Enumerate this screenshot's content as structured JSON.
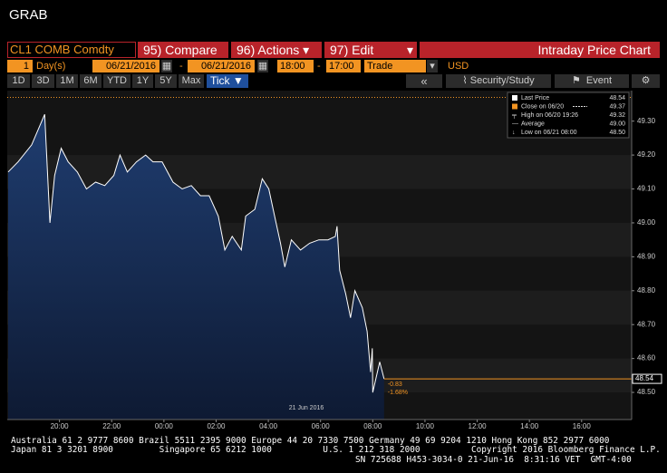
{
  "header": {
    "title": "GRAB"
  },
  "toolbar": {
    "security": "CL1 COMB Comdty",
    "buttons": [
      "95) Compare",
      "96) Actions",
      "97) Edit"
    ],
    "panel_title": "Intraday Price Chart",
    "range": {
      "count": "1",
      "unit": "Day(s)",
      "start_date": "06/21/2016",
      "dash": "-",
      "end_date": "06/21/2016",
      "start_time": "18:00",
      "end_time": "17:00",
      "field": "Trade",
      "currency": "USD"
    },
    "periods": [
      "1D",
      "3D",
      "1M",
      "6M",
      "YTD",
      "1Y",
      "5Y",
      "Max"
    ],
    "interval": "Tick",
    "back": "«",
    "study": "Security/Study",
    "event": "Event"
  },
  "chart_data": {
    "type": "area",
    "color": "#ffffff",
    "fill": "#1e3a6b",
    "x": [
      "18:02",
      "18:25",
      "18:56",
      "19:26",
      "19:38",
      "19:49",
      "20:04",
      "20:20",
      "20:41",
      "21:02",
      "21:23",
      "21:44",
      "22:05",
      "22:19",
      "22:36",
      "22:57",
      "23:18",
      "23:35",
      "23:56",
      "00:21",
      "00:42",
      "01:03",
      "01:24",
      "01:44",
      "02:05",
      "02:20",
      "02:37",
      "02:58",
      "03:08",
      "03:29",
      "03:46",
      "04:01",
      "04:11",
      "04:28",
      "04:38",
      "04:53",
      "05:14",
      "05:35",
      "05:56",
      "06:17",
      "06:34",
      "06:38",
      "06:44",
      "06:58",
      "07:09",
      "07:19",
      "07:36",
      "07:47",
      "07:55",
      "07:59",
      "08:00",
      "08:16",
      "08:26"
    ],
    "values": [
      49.15,
      49.18,
      49.23,
      49.32,
      49.0,
      49.14,
      49.22,
      49.18,
      49.15,
      49.1,
      49.12,
      49.11,
      49.14,
      49.2,
      49.15,
      49.18,
      49.2,
      49.18,
      49.18,
      49.12,
      49.1,
      49.11,
      49.08,
      49.08,
      49.02,
      48.92,
      48.96,
      48.92,
      49.02,
      49.04,
      49.13,
      49.1,
      49.04,
      48.94,
      48.87,
      48.95,
      48.92,
      48.94,
      48.95,
      48.95,
      48.96,
      48.99,
      48.86,
      48.79,
      48.72,
      48.8,
      48.75,
      48.68,
      48.56,
      48.63,
      48.5,
      48.59,
      48.54
    ],
    "xlim": [
      "18:00",
      "17:55"
    ],
    "xticks": [
      "20:00",
      "22:00",
      "00:00",
      "02:00",
      "04:00",
      "06:00",
      "08:00",
      "10:00",
      "12:00",
      "14:00",
      "16:00"
    ],
    "ylim": [
      48.42,
      49.39
    ],
    "yticks": [
      {
        "value": 48.5,
        "label": "48.50"
      },
      {
        "value": 48.6,
        "label": "48.60"
      },
      {
        "value": 48.7,
        "label": "48.70"
      },
      {
        "value": 48.8,
        "label": "48.80"
      },
      {
        "value": 48.9,
        "label": "48.90"
      },
      {
        "value": 49.0,
        "label": "49.00"
      },
      {
        "value": 49.1,
        "label": "49.10"
      },
      {
        "value": 49.2,
        "label": "49.20"
      },
      {
        "value": 49.3,
        "label": "49.30"
      }
    ],
    "date_label": "21 Jun 2016",
    "legend": [
      {
        "label": "Last Price",
        "value": 48.54
      },
      {
        "label": "Close on 06/20",
        "value": 49.37
      },
      {
        "label": "High on 06/20 19:26",
        "value": 49.32
      },
      {
        "label": "Average",
        "value": 49.0,
        "value_label": "49.00"
      },
      {
        "label": "Low on 06/21 08:00",
        "value": 48.5,
        "value_label": "48.50"
      }
    ],
    "annotations": [
      {
        "value": -0.83
      },
      {
        "value": -1.68,
        "label": "-1.68%"
      }
    ]
  },
  "footer": [
    "Australia 61 2 9777 8600 Brazil 5511 2395 9000 Europe 44 20 7330 7500 Germany 49 69 9204 1210 Hong Kong 852 2977 6000",
    "Japan 81 3 3201 8900         Singapore 65 6212 1000          U.S. 1 212 318 2000          Copyright 2016 Bloomberg Finance L.P.",
    "SN 725688 H453-3034-0 21-Jun-16  8:31:16 VET  GMT-4:00"
  ]
}
